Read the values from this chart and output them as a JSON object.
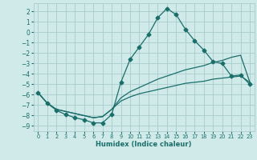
{
  "xlabel": "Humidex (Indice chaleur)",
  "xlim": [
    -0.5,
    23.5
  ],
  "ylim": [
    -9.5,
    2.8
  ],
  "xticks": [
    0,
    1,
    2,
    3,
    4,
    5,
    6,
    7,
    8,
    9,
    10,
    11,
    12,
    13,
    14,
    15,
    16,
    17,
    18,
    19,
    20,
    21,
    22,
    23
  ],
  "yticks": [
    -9,
    -8,
    -7,
    -6,
    -5,
    -4,
    -3,
    -2,
    -1,
    0,
    1,
    2
  ],
  "background_color": "#d0eaea",
  "grid_color": "#a8cccc",
  "line_color": "#1a6e6a",
  "line1_x": [
    0,
    1,
    2,
    3,
    4,
    5,
    6,
    7,
    8,
    9,
    10,
    11,
    12,
    13,
    14,
    15,
    16,
    17,
    18,
    19,
    20,
    21,
    22,
    23
  ],
  "line1_y": [
    -5.8,
    -6.8,
    -7.5,
    -7.9,
    -8.2,
    -8.4,
    -8.7,
    -8.7,
    -7.9,
    -4.8,
    -2.6,
    -1.4,
    -0.2,
    1.4,
    2.3,
    1.7,
    0.3,
    -0.8,
    -1.7,
    -2.8,
    -3.0,
    -4.2,
    -4.1,
    -5.0
  ],
  "line2_x": [
    0,
    1,
    2,
    3,
    4,
    5,
    6,
    7,
    8,
    9,
    10,
    11,
    12,
    13,
    14,
    15,
    16,
    17,
    18,
    19,
    20,
    21,
    22,
    23
  ],
  "line2_y": [
    -5.8,
    -6.8,
    -7.4,
    -7.6,
    -7.8,
    -8.0,
    -8.2,
    -8.1,
    -7.4,
    -6.3,
    -5.7,
    -5.3,
    -4.9,
    -4.5,
    -4.2,
    -3.9,
    -3.6,
    -3.4,
    -3.2,
    -2.9,
    -2.7,
    -2.4,
    -2.2,
    -4.8
  ],
  "line3_x": [
    0,
    1,
    2,
    3,
    4,
    5,
    6,
    7,
    8,
    9,
    10,
    11,
    12,
    13,
    14,
    15,
    16,
    17,
    18,
    19,
    20,
    21,
    22,
    23
  ],
  "line3_y": [
    -5.8,
    -6.8,
    -7.4,
    -7.6,
    -7.8,
    -8.0,
    -8.2,
    -8.1,
    -7.4,
    -6.6,
    -6.2,
    -5.9,
    -5.7,
    -5.5,
    -5.3,
    -5.1,
    -4.9,
    -4.8,
    -4.7,
    -4.5,
    -4.4,
    -4.3,
    -4.2,
    -4.8
  ]
}
